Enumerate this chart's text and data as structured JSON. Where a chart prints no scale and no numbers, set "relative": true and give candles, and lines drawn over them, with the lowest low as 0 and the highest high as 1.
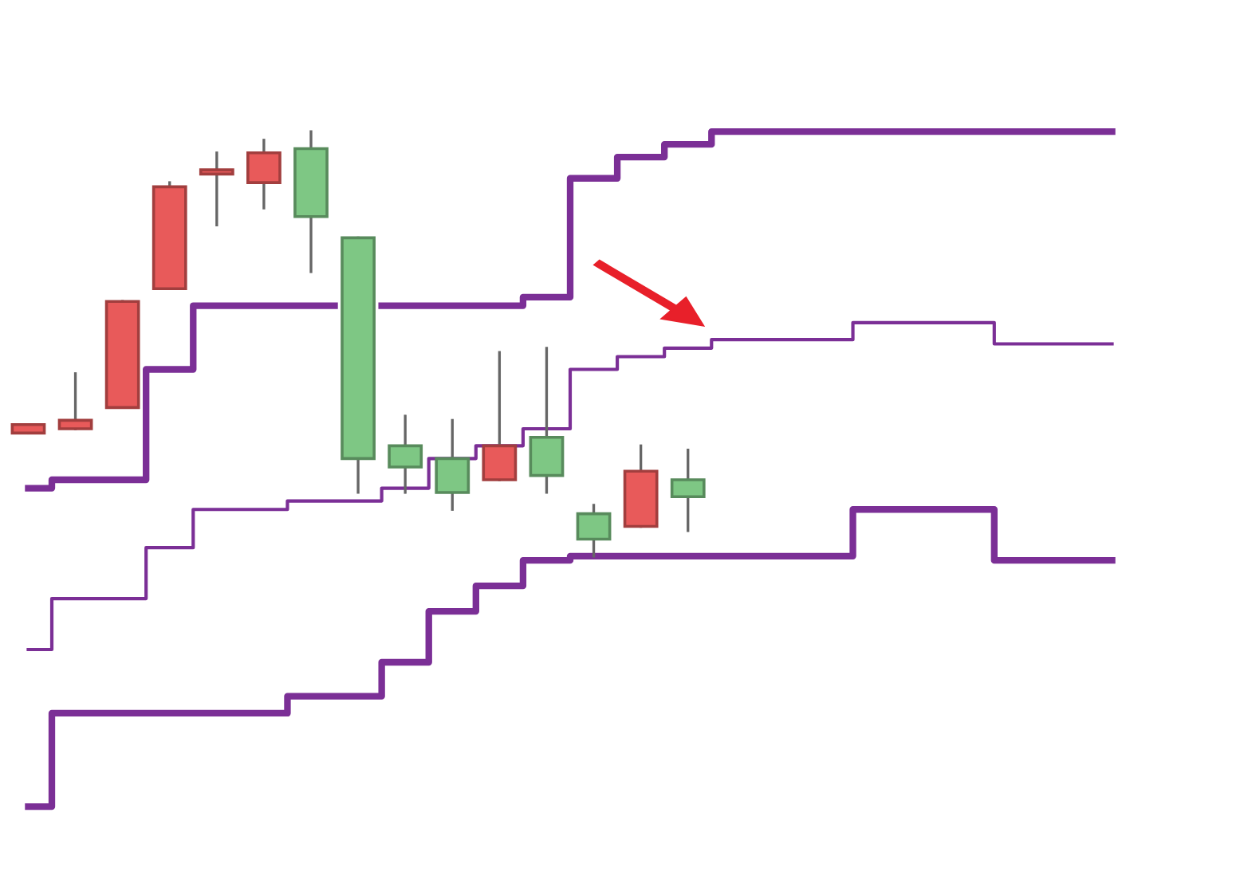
{
  "chart_data": {
    "type": "candlestick",
    "relative": true,
    "categories": [
      null,
      null,
      null,
      null,
      null,
      null,
      null,
      null,
      null,
      null,
      null,
      null,
      null,
      null,
      null,
      null,
      null,
      null,
      null,
      null,
      null,
      null,
      null,
      null
    ],
    "ohlc": [
      [
        0.29,
        0.31,
        0.29,
        0.31
      ],
      [
        0.3,
        0.43,
        0.3,
        0.32
      ],
      [
        0.35,
        0.6,
        0.35,
        0.6
      ],
      [
        0.63,
        0.88,
        0.63,
        0.87
      ],
      [
        0.9,
        0.95,
        0.78,
        0.91
      ],
      [
        0.88,
        0.98,
        0.82,
        0.95
      ],
      [
        0.96,
        1.0,
        0.67,
        0.8
      ],
      [
        0.75,
        0.75,
        0.15,
        0.23
      ],
      [
        0.26,
        0.33,
        0.15,
        0.21
      ],
      [
        0.23,
        0.32,
        0.11,
        0.15
      ],
      [
        0.18,
        0.48,
        0.18,
        0.26
      ],
      [
        0.28,
        0.49,
        0.15,
        0.19
      ],
      [
        0.1,
        0.12,
        0.0,
        0.04
      ],
      [
        0.07,
        0.26,
        0.07,
        0.2
      ],
      [
        0.18,
        0.25,
        0.06,
        0.14
      ],
      null,
      null,
      null,
      null,
      null,
      null,
      null,
      null,
      null
    ],
    "colors": [
      "#e85a5a",
      "#e85a5a",
      "#e85a5a",
      "#e85a5a",
      "#e85a5a",
      "#e85a5a",
      "#7ec784",
      "#7ec784",
      "#7ec784",
      "#7ec784",
      "#e85a5a",
      "#7ec784",
      "#7ec784",
      "#e85a5a",
      "#7ec784",
      null,
      null,
      null,
      null,
      null,
      null,
      null,
      null,
      null
    ],
    "series": [
      {
        "type": "step",
        "color": "#7b2f96",
        "values": [
          0.16,
          0.18,
          0.18,
          0.44,
          0.59,
          0.59,
          0.59,
          null,
          0.59,
          0.59,
          0.59,
          0.61,
          0.89,
          0.94,
          0.97,
          1.0,
          1.0,
          1.0,
          1.0,
          1.0,
          1.0,
          1.0,
          1.0,
          1.0
        ]
      },
      {
        "type": "step",
        "color": "#7b2f96",
        "values": [
          -0.22,
          -0.1,
          -0.1,
          0.02,
          0.11,
          0.11,
          0.13,
          0.13,
          0.16,
          0.23,
          0.26,
          0.3,
          0.44,
          0.47,
          0.49,
          0.51,
          0.51,
          0.51,
          0.55,
          0.55,
          0.55,
          0.5,
          0.5,
          0.5
        ]
      },
      {
        "type": "step",
        "color": "#7b2f96",
        "values": [
          -0.59,
          -0.37,
          -0.37,
          -0.37,
          -0.37,
          -0.37,
          -0.33,
          -0.33,
          -0.25,
          -0.13,
          -0.07,
          -0.01,
          0.0,
          0.0,
          0.0,
          0.0,
          0.0,
          0.0,
          0.11,
          0.11,
          0.11,
          -0.01,
          -0.01,
          -0.01
        ]
      }
    ]
  }
}
